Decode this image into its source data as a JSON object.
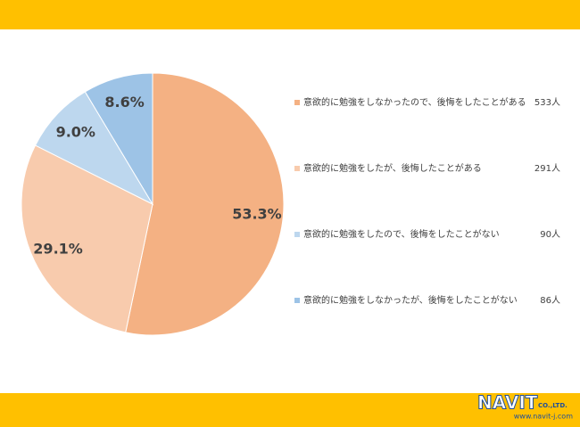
{
  "chart_data": {
    "type": "pie",
    "categories": [
      "意欲的に勉強をしなかったので、後悔をしたことがある",
      "意欲的に勉強をしたが、後悔したことがある",
      "意欲的に勉強をしたので、後悔をしたことがない",
      "意欲的に勉強をしなかったが、後悔をしたことがない"
    ],
    "values": [
      53.3,
      29.1,
      9.0,
      8.6
    ],
    "value_labels": [
      "53.3%",
      "29.1%",
      "9.0%",
      "8.6%"
    ],
    "count_labels": [
      "533人",
      "291人",
      "90人",
      "86人"
    ],
    "colors": [
      "#f4b183",
      "#f8cbad",
      "#bdd7ee",
      "#9dc3e6"
    ]
  },
  "footer": {
    "logo": "NAVIT",
    "suffix": "CO.,LTD.",
    "url": "www.navit-j.com"
  }
}
